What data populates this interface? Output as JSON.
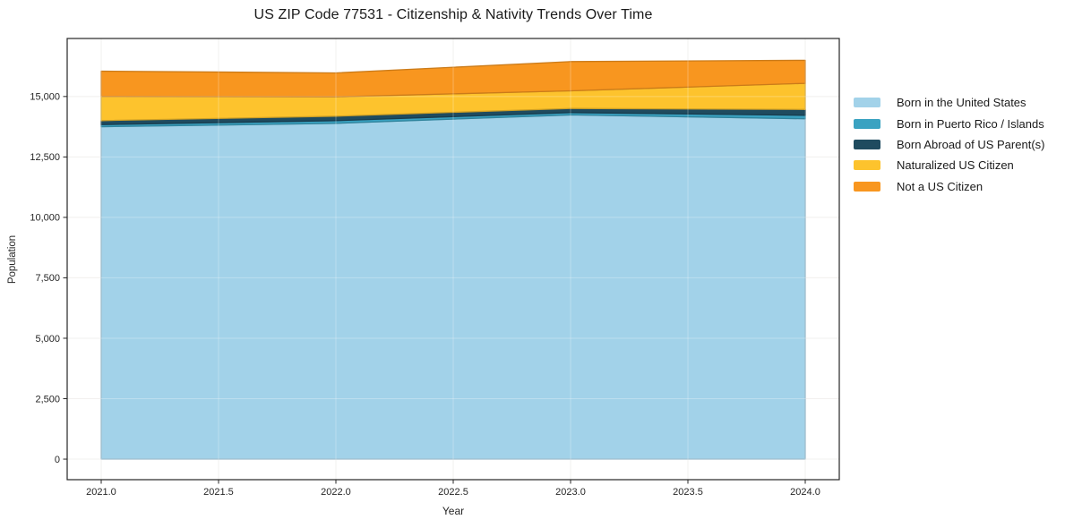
{
  "chart_data": {
    "type": "area",
    "stacked": true,
    "title": "US ZIP Code 77531 - Citizenship & Nativity Trends Over Time",
    "xlabel": "Year",
    "ylabel": "Population",
    "x": [
      2021,
      2022,
      2023,
      2024
    ],
    "series": [
      {
        "name": "Born in the United States",
        "color": "#A2D2E9",
        "values": [
          13750,
          13890,
          14240,
          14080
        ]
      },
      {
        "name": "Born in Puerto Rico / Islands",
        "color": "#3AA2C1",
        "values": [
          90,
          110,
          95,
          145
        ]
      },
      {
        "name": "Born Abroad of US Parent(s)",
        "color": "#1F4B5F",
        "values": [
          160,
          185,
          170,
          240
        ]
      },
      {
        "name": "Naturalized US Citizen",
        "color": "#FDC32D",
        "values": [
          1000,
          800,
          730,
          1080
        ]
      },
      {
        "name": "Not a US Citizen",
        "color": "#F8961F",
        "values": [
          1050,
          990,
          1210,
          950
        ]
      }
    ],
    "x_ticks": {
      "values": [
        2021.0,
        2021.5,
        2022.0,
        2022.5,
        2023.0,
        2023.5,
        2024.0
      ],
      "labels": [
        "2021.0",
        "2021.5",
        "2022.0",
        "2022.5",
        "2023.0",
        "2023.5",
        "2024.0"
      ]
    },
    "y_ticks": {
      "values": [
        0,
        2500,
        5000,
        7500,
        10000,
        12500,
        15000
      ],
      "labels": [
        "0",
        "2,500",
        "5,000",
        "7,500",
        "10,000",
        "12,500",
        "15,000"
      ]
    },
    "xlim": [
      2020.855,
      2024.145
    ],
    "ylim": [
      -850,
      17400
    ],
    "grid": true,
    "legend_position": "right",
    "grid_color": "#eeebe9",
    "border_color": "#262626",
    "tick_label_color": "#262626"
  }
}
